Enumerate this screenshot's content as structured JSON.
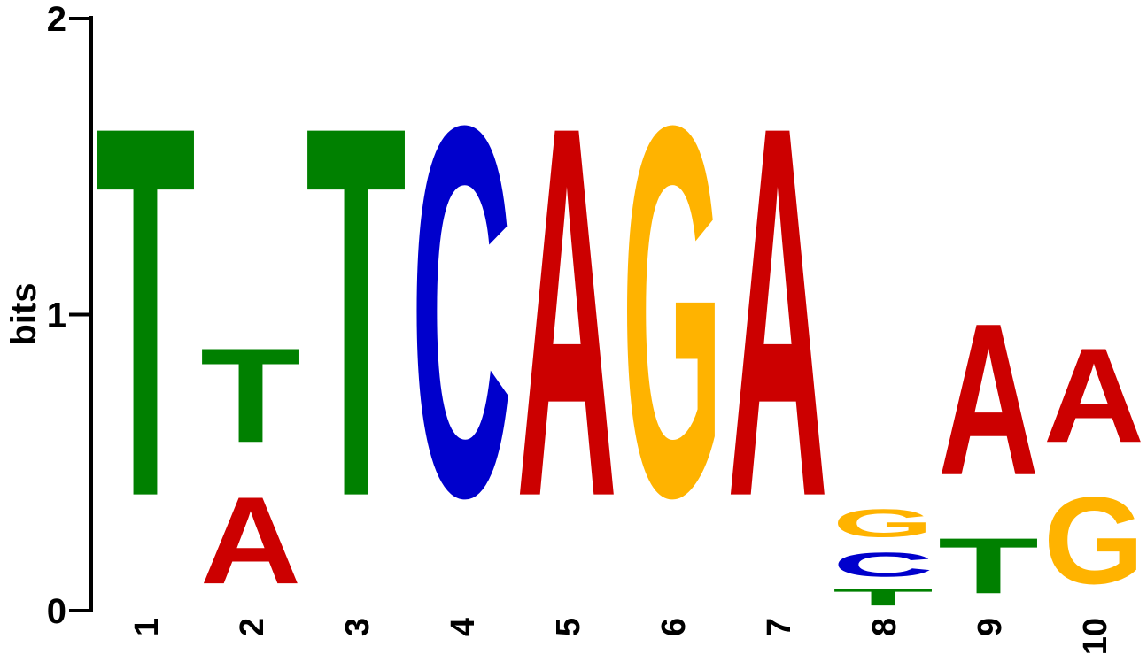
{
  "chart_data": {
    "type": "sequence-logo",
    "ylabel": "bits",
    "ylim": [
      0,
      2
    ],
    "yticks": [
      0,
      1,
      2
    ],
    "colors": {
      "A": "#cc0000",
      "C": "#0000cc",
      "G": "#ffb300",
      "T": "#008000"
    },
    "positions": [
      {
        "label": "1",
        "stack": [
          {
            "letter": "T",
            "bits": 2.0
          }
        ]
      },
      {
        "label": "2",
        "stack": [
          {
            "letter": "A",
            "bits": 0.47
          },
          {
            "letter": "T",
            "bits": 0.51
          }
        ]
      },
      {
        "label": "3",
        "stack": [
          {
            "letter": "T",
            "bits": 2.0
          }
        ]
      },
      {
        "label": "4",
        "stack": [
          {
            "letter": "C",
            "bits": 2.0
          }
        ]
      },
      {
        "label": "5",
        "stack": [
          {
            "letter": "A",
            "bits": 2.0
          }
        ]
      },
      {
        "label": "6",
        "stack": [
          {
            "letter": "G",
            "bits": 2.0
          }
        ]
      },
      {
        "label": "7",
        "stack": [
          {
            "letter": "A",
            "bits": 2.0
          }
        ]
      },
      {
        "label": "8",
        "stack": [
          {
            "letter": "T",
            "bits": 0.09
          },
          {
            "letter": "C",
            "bits": 0.13
          },
          {
            "letter": "G",
            "bits": 0.15
          }
        ]
      },
      {
        "label": "9",
        "stack": [
          {
            "letter": "T",
            "bits": 0.3
          },
          {
            "letter": "A",
            "bits": 0.82
          }
        ]
      },
      {
        "label": "10",
        "stack": [
          {
            "letter": "G",
            "bits": 0.47
          },
          {
            "letter": "A",
            "bits": 0.51
          }
        ]
      }
    ]
  }
}
